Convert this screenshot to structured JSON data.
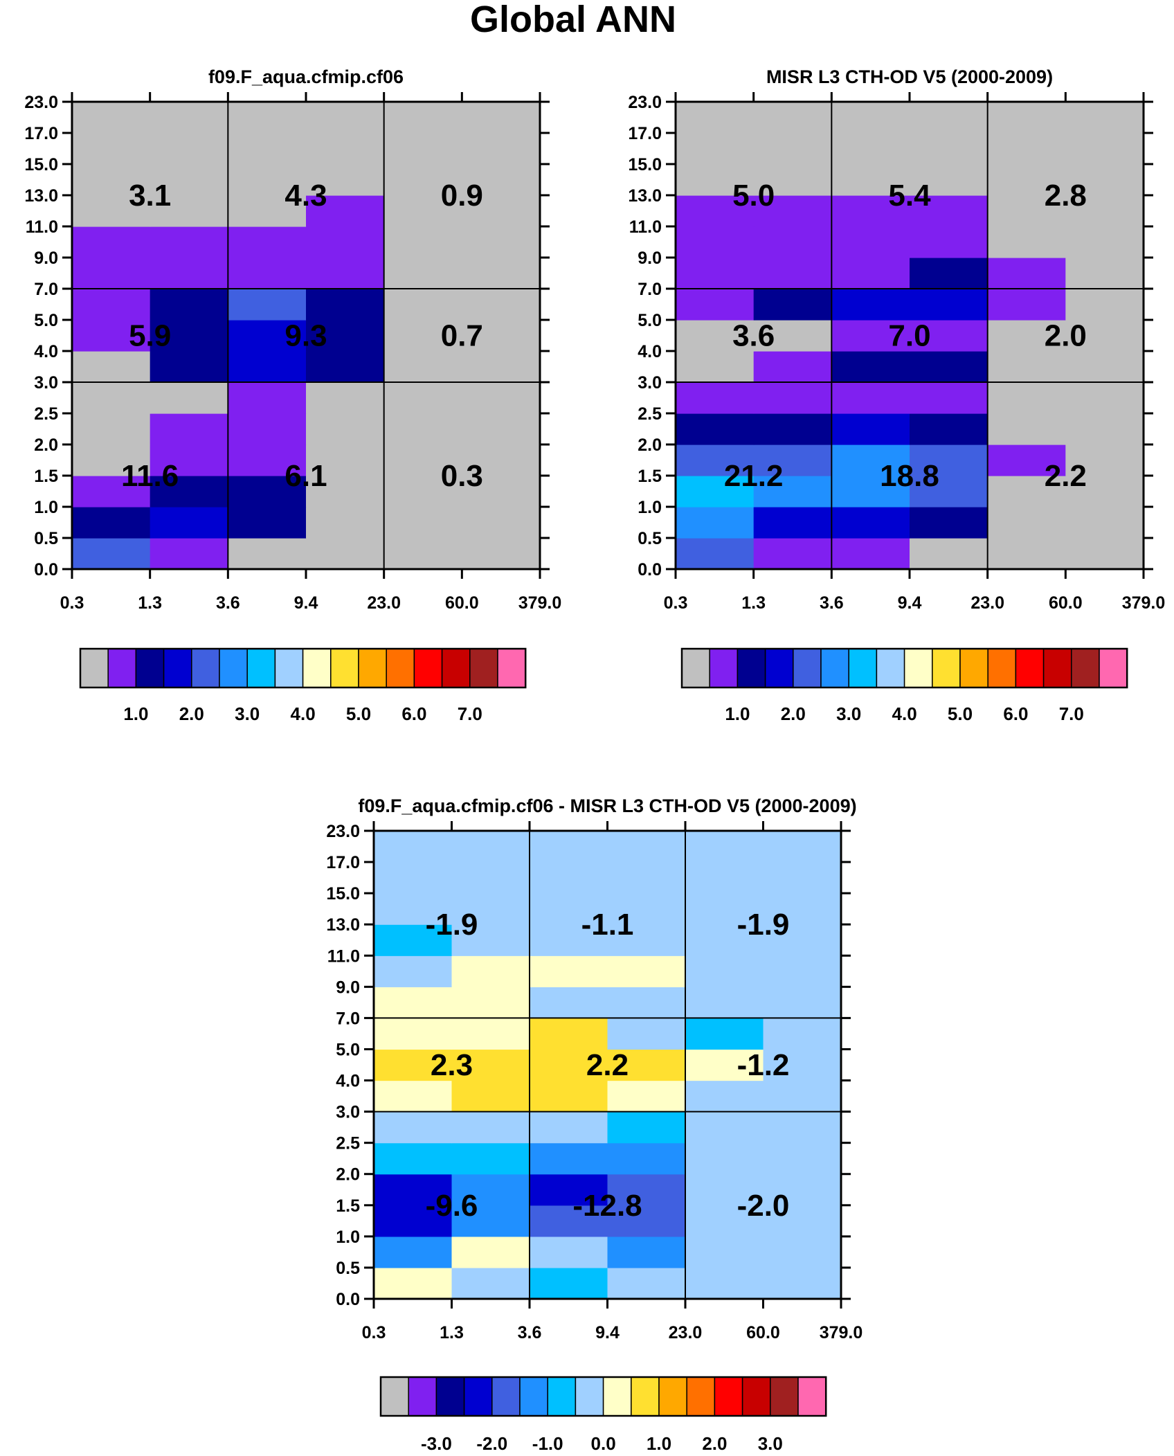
{
  "title": "Global ANN",
  "y_tick_labels": [
    "0.0",
    "0.5",
    "1.0",
    "1.5",
    "2.0",
    "2.5",
    "3.0",
    "4.0",
    "5.0",
    "7.0",
    "9.0",
    "11.0",
    "13.0",
    "15.0",
    "17.0",
    "23.0"
  ],
  "x_tick_labels": [
    "0.3",
    "1.3",
    "3.6",
    "9.4",
    "23.0",
    "60.0",
    "379.0"
  ],
  "palette": [
    "#c0c0c0",
    "#8020f0",
    "#000090",
    "#0000d0",
    "#4060e0",
    "#2090ff",
    "#00c0ff",
    "#a0d0ff",
    "#ffffc8",
    "#ffe030",
    "#ffa800",
    "#ff7000",
    "#ff0000",
    "#c80000",
    "#a02020",
    "#ff68b0"
  ],
  "colorbar_main_labels": [
    "1.0",
    "2.0",
    "3.0",
    "4.0",
    "5.0",
    "6.0",
    "7.0"
  ],
  "colorbar_diff_labels": [
    "-3.0",
    "-2.0",
    "-1.0",
    "0.0",
    "1.0",
    "2.0",
    "3.0"
  ],
  "chart_data": [
    {
      "type": "heatmap",
      "title": "f09.F_aqua.cfmip.cf06",
      "xlabel": "",
      "ylabel": "",
      "x_edges": [
        "0.3",
        "1.3",
        "3.6",
        "9.4",
        "23.0",
        "60.0",
        "379.0"
      ],
      "y_edges": [
        "0.0",
        "0.5",
        "1.0",
        "1.5",
        "2.0",
        "2.5",
        "3.0",
        "4.0",
        "5.0",
        "7.0",
        "9.0",
        "11.0",
        "13.0",
        "15.0",
        "17.0",
        "23.0"
      ],
      "color_levels": [
        "<1.0",
        "1.0",
        "1.5",
        "2.0",
        "2.5",
        "3.0",
        "3.5",
        "4.0",
        "4.5",
        "5.0",
        "5.5",
        "6.0",
        "6.5",
        "7.0",
        ">7.0"
      ],
      "cell_color_index_rows_bottom_to_top": [
        [
          4,
          1,
          0,
          0,
          0,
          0
        ],
        [
          2,
          3,
          2,
          0,
          0,
          0
        ],
        [
          1,
          2,
          2,
          0,
          0,
          0
        ],
        [
          0,
          1,
          1,
          0,
          0,
          0
        ],
        [
          0,
          1,
          1,
          0,
          0,
          0
        ],
        [
          0,
          0,
          1,
          0,
          0,
          0
        ],
        [
          0,
          2,
          3,
          2,
          0,
          0
        ],
        [
          1,
          2,
          3,
          2,
          0,
          0
        ],
        [
          1,
          2,
          4,
          2,
          0,
          0
        ],
        [
          1,
          1,
          1,
          1,
          0,
          0
        ],
        [
          1,
          1,
          1,
          1,
          0,
          0
        ],
        [
          0,
          0,
          0,
          1,
          0,
          0
        ],
        [
          0,
          0,
          0,
          0,
          0,
          0
        ],
        [
          0,
          0,
          0,
          0,
          0,
          0
        ],
        [
          0,
          0,
          0,
          0,
          0,
          0
        ]
      ],
      "grouped_totals": [
        {
          "label": "3.1",
          "col": 0,
          "row": 2
        },
        {
          "label": "4.3",
          "col": 1,
          "row": 2
        },
        {
          "label": "0.9",
          "col": 2,
          "row": 2
        },
        {
          "label": "5.9",
          "col": 0,
          "row": 1
        },
        {
          "label": "9.3",
          "col": 1,
          "row": 1
        },
        {
          "label": "0.7",
          "col": 2,
          "row": 1
        },
        {
          "label": "11.6",
          "col": 0,
          "row": 0
        },
        {
          "label": "6.1",
          "col": 1,
          "row": 0
        },
        {
          "label": "0.3",
          "col": 2,
          "row": 0
        }
      ]
    },
    {
      "type": "heatmap",
      "title": "MISR L3 CTH-OD V5 (2000-2009)",
      "xlabel": "",
      "ylabel": "",
      "x_edges": [
        "0.3",
        "1.3",
        "3.6",
        "9.4",
        "23.0",
        "60.0",
        "379.0"
      ],
      "y_edges": [
        "0.0",
        "0.5",
        "1.0",
        "1.5",
        "2.0",
        "2.5",
        "3.0",
        "4.0",
        "5.0",
        "7.0",
        "9.0",
        "11.0",
        "13.0",
        "15.0",
        "17.0",
        "23.0"
      ],
      "color_levels": [
        "<1.0",
        "1.0",
        "1.5",
        "2.0",
        "2.5",
        "3.0",
        "3.5",
        "4.0",
        "4.5",
        "5.0",
        "5.5",
        "6.0",
        "6.5",
        "7.0",
        ">7.0"
      ],
      "cell_color_index_rows_bottom_to_top": [
        [
          4,
          1,
          1,
          0,
          0,
          0
        ],
        [
          5,
          3,
          3,
          2,
          0,
          0
        ],
        [
          6,
          5,
          5,
          4,
          0,
          0
        ],
        [
          4,
          4,
          5,
          4,
          1,
          0
        ],
        [
          2,
          2,
          3,
          2,
          0,
          0
        ],
        [
          1,
          1,
          1,
          1,
          0,
          0
        ],
        [
          0,
          1,
          2,
          2,
          0,
          0
        ],
        [
          0,
          0,
          1,
          1,
          0,
          0
        ],
        [
          1,
          2,
          3,
          3,
          1,
          0
        ],
        [
          1,
          1,
          1,
          2,
          1,
          0
        ],
        [
          1,
          1,
          1,
          1,
          0,
          0
        ],
        [
          1,
          1,
          1,
          1,
          0,
          0
        ],
        [
          0,
          0,
          0,
          0,
          0,
          0
        ],
        [
          0,
          0,
          0,
          0,
          0,
          0
        ],
        [
          0,
          0,
          0,
          0,
          0,
          0
        ]
      ],
      "grouped_totals": [
        {
          "label": "5.0",
          "col": 0,
          "row": 2
        },
        {
          "label": "5.4",
          "col": 1,
          "row": 2
        },
        {
          "label": "2.8",
          "col": 2,
          "row": 2
        },
        {
          "label": "3.6",
          "col": 0,
          "row": 1
        },
        {
          "label": "7.0",
          "col": 1,
          "row": 1
        },
        {
          "label": "2.0",
          "col": 2,
          "row": 1
        },
        {
          "label": "21.2",
          "col": 0,
          "row": 0
        },
        {
          "label": "18.8",
          "col": 1,
          "row": 0
        },
        {
          "label": "2.2",
          "col": 2,
          "row": 0
        }
      ]
    },
    {
      "type": "heatmap",
      "title": "f09.F_aqua.cfmip.cf06 - MISR L3 CTH-OD V5 (2000-2009)",
      "xlabel": "",
      "ylabel": "",
      "x_edges": [
        "0.3",
        "1.3",
        "3.6",
        "9.4",
        "23.0",
        "60.0",
        "379.0"
      ],
      "y_edges": [
        "0.0",
        "0.5",
        "1.0",
        "1.5",
        "2.0",
        "2.5",
        "3.0",
        "4.0",
        "5.0",
        "7.0",
        "9.0",
        "11.0",
        "13.0",
        "15.0",
        "17.0",
        "23.0"
      ],
      "color_levels": [
        "<-3.0",
        "-3.0",
        "-2.5",
        "-2.0",
        "-1.5",
        "-1.0",
        "-0.5",
        "0.0",
        "0.5",
        "1.0",
        "1.5",
        "2.0",
        "2.5",
        "3.0",
        ">3.0"
      ],
      "cell_color_index_rows_bottom_to_top": [
        [
          8,
          7,
          6,
          7,
          7,
          7
        ],
        [
          5,
          8,
          7,
          5,
          7,
          7
        ],
        [
          3,
          5,
          4,
          4,
          7,
          7
        ],
        [
          3,
          5,
          3,
          4,
          7,
          7
        ],
        [
          6,
          6,
          5,
          5,
          7,
          7
        ],
        [
          7,
          7,
          7,
          6,
          7,
          7
        ],
        [
          8,
          9,
          9,
          8,
          7,
          7
        ],
        [
          9,
          9,
          9,
          9,
          8,
          7
        ],
        [
          8,
          8,
          9,
          7,
          6,
          7
        ],
        [
          8,
          8,
          7,
          7,
          7,
          7
        ],
        [
          7,
          8,
          8,
          8,
          7,
          7
        ],
        [
          6,
          7,
          7,
          7,
          7,
          7
        ],
        [
          7,
          7,
          7,
          7,
          7,
          7
        ],
        [
          7,
          7,
          7,
          7,
          7,
          7
        ],
        [
          7,
          7,
          7,
          7,
          7,
          7
        ]
      ],
      "grouped_totals": [
        {
          "label": "-1.9",
          "col": 0,
          "row": 2
        },
        {
          "label": "-1.1",
          "col": 1,
          "row": 2
        },
        {
          "label": "-1.9",
          "col": 2,
          "row": 2
        },
        {
          "label": "2.3",
          "col": 0,
          "row": 1
        },
        {
          "label": "2.2",
          "col": 1,
          "row": 1
        },
        {
          "label": "-1.2",
          "col": 2,
          "row": 1
        },
        {
          "label": "-9.6",
          "col": 0,
          "row": 0
        },
        {
          "label": "-12.8",
          "col": 1,
          "row": 0
        },
        {
          "label": "-2.0",
          "col": 2,
          "row": 0
        }
      ]
    }
  ]
}
